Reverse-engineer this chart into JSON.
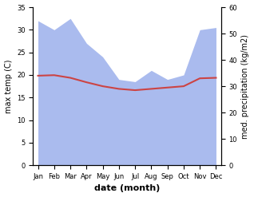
{
  "months": [
    "Jan",
    "Feb",
    "Mar",
    "Apr",
    "May",
    "Jun",
    "Jul",
    "Aug",
    "Sep",
    "Oct",
    "Nov",
    "Dec"
  ],
  "temperature": [
    34.0,
    34.2,
    33.2,
    31.5,
    30.0,
    29.0,
    28.5,
    29.0,
    29.5,
    30.0,
    33.0,
    33.2
  ],
  "precipitation": [
    32.0,
    30.0,
    32.5,
    27.0,
    24.0,
    19.0,
    18.5,
    21.0,
    19.0,
    20.0,
    30.0,
    30.5
  ],
  "temp_color": "#cc4444",
  "precip_color": "#aabbee",
  "xlabel": "date (month)",
  "ylabel_left": "max temp (C)",
  "ylabel_right": "med. precipitation (kg/m2)",
  "ylim_left": [
    0,
    35
  ],
  "ylim_right": [
    0,
    60
  ],
  "yticks_left": [
    0,
    5,
    10,
    15,
    20,
    25,
    30,
    35
  ],
  "yticks_right": [
    0,
    10,
    20,
    30,
    40,
    50,
    60
  ],
  "bg_color": "#ffffff"
}
